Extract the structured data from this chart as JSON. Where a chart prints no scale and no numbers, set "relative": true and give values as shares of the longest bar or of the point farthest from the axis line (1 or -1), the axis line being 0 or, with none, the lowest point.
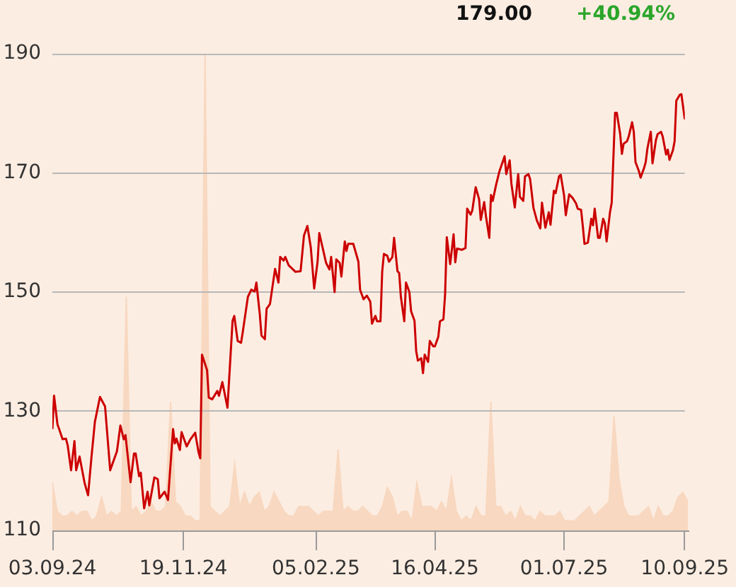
{
  "chart_data": [
    {
      "type": "area",
      "relative": true,
      "categories": [
        null,
        null,
        null,
        null,
        null,
        null,
        null,
        null,
        null,
        null,
        null,
        null,
        null,
        null,
        null,
        null,
        null,
        null,
        null,
        null,
        null,
        null,
        null,
        null,
        null,
        null,
        null,
        null,
        null,
        null,
        null,
        null,
        null,
        null,
        null,
        null,
        null,
        null,
        null,
        null,
        null,
        null,
        null,
        null,
        null,
        null,
        null,
        null,
        null,
        null,
        null,
        null,
        null,
        null,
        null,
        null,
        null,
        null,
        null,
        null,
        null,
        null,
        null,
        null,
        null,
        null,
        null,
        null,
        null,
        null,
        null,
        null,
        null,
        null,
        null,
        null,
        null,
        null,
        null,
        null,
        null,
        null,
        null,
        null,
        null,
        null,
        null,
        null,
        null,
        null,
        null,
        null,
        null,
        null,
        null,
        null,
        null,
        null,
        null,
        null,
        null,
        null,
        null,
        null,
        null,
        null,
        null,
        null,
        null,
        null,
        null,
        null,
        null,
        null,
        null,
        null,
        null,
        null,
        null,
        null,
        null,
        null,
        null,
        null,
        null,
        null,
        null,
        null,
        null,
        null
      ],
      "series": [
        {
          "color": "#f8d8c0",
          "values": [
            0.1,
            0.04,
            0.03,
            0.03,
            0.04,
            0.03,
            0.04,
            0.04,
            0.02,
            0.03,
            0.07,
            0.03,
            0.04,
            0.03,
            0.04,
            0.49,
            0.04,
            0.05,
            0.03,
            0.04,
            0.06,
            0.04,
            0.04,
            0.05,
            0.27,
            0.06,
            0.05,
            0.03,
            0.03,
            0.02,
            0.02,
            1,
            0.05,
            0.04,
            0.03,
            0.04,
            0.05,
            0.14,
            0.05,
            0.08,
            0.05,
            0.07,
            0.08,
            0.04,
            0.05,
            0.08,
            0.06,
            0.04,
            0.03,
            0.03,
            0.05,
            0.05,
            0.05,
            0.04,
            0.03,
            0.04,
            0.04,
            0.04,
            0.17,
            0.04,
            0.05,
            0.04,
            0.04,
            0.05,
            0.04,
            0.03,
            0.03,
            0.05,
            0.09,
            0.07,
            0.03,
            0.04,
            0.04,
            0.02,
            0.1,
            0.05,
            0.05,
            0.05,
            0.04,
            0.06,
            0.04,
            0.11,
            0.04,
            0.02,
            0.03,
            0.02,
            0.05,
            0.03,
            0.03,
            0.27,
            0.05,
            0.05,
            0.03,
            0.04,
            0.02,
            0.05,
            0.03,
            0.03,
            0.02,
            0.04,
            0.03,
            0.03,
            0.03,
            0.04,
            0.02,
            0.02,
            0.02,
            0.03,
            0.04,
            0.05,
            0.03,
            0.04,
            0.05,
            0.06,
            0.24,
            0.11,
            0.05,
            0.03,
            0.03,
            0.03,
            0.04,
            0.05,
            0.02,
            0.05,
            0.03,
            0.03,
            0.04,
            0.07,
            0.08,
            0.06
          ]
        }
      ]
    },
    {
      "type": "line",
      "annotations": [
        "179.00",
        "+40.94%"
      ],
      "xlim": [
        "2024-09-03",
        "2025-09-10"
      ],
      "xticks": [
        {
          "value": "2024-09-03",
          "label": "03.09.24"
        },
        {
          "value": "2024-11-19",
          "label": "19.11.24"
        },
        {
          "value": "2025-02-05",
          "label": "05.02.25"
        },
        {
          "value": "2025-04-16",
          "label": "16.04.25"
        },
        {
          "value": "2025-07-01",
          "label": "01.07.25"
        },
        {
          "value": "2025-09-10",
          "label": "10.09.25"
        }
      ],
      "ylim": [
        110,
        190
      ],
      "yticks": [
        110,
        130,
        150,
        170,
        190
      ],
      "grid": "y",
      "series": [
        {
          "color": "#cc0000",
          "x": [
            "2024-09-03",
            "2024-09-04",
            "2024-09-06",
            "2024-09-07",
            "2024-09-09",
            "2024-09-11",
            "2024-09-12",
            "2024-09-14",
            "2024-09-16",
            "2024-09-17",
            "2024-09-19",
            "2024-09-22",
            "2024-09-24",
            "2024-09-26",
            "2024-09-28",
            "2024-10-01",
            "2024-10-04",
            "2024-10-07",
            "2024-10-11",
            "2024-10-13",
            "2024-10-15",
            "2024-10-16",
            "2024-10-19",
            "2024-10-21",
            "2024-10-22",
            "2024-10-24",
            "2024-10-25",
            "2024-10-27",
            "2024-10-29",
            "2024-10-30",
            "2024-11-02",
            "2024-11-04",
            "2024-11-05",
            "2024-11-08",
            "2024-11-10",
            "2024-11-13",
            "2024-11-14",
            "2024-11-15",
            "2024-11-17",
            "2024-11-18",
            "2024-11-21",
            "2024-11-23",
            "2024-11-26",
            "2024-11-28",
            "2024-11-29",
            "2024-11-30",
            "2024-12-03",
            "2024-12-04",
            "2024-12-06",
            "2024-12-09",
            "2024-12-10",
            "2024-12-12",
            "2024-12-15",
            "2024-12-18",
            "2024-12-19",
            "2024-12-21",
            "2024-12-23",
            "2024-12-24",
            "2024-12-27",
            "2024-12-29",
            "2024-12-31",
            "2025-01-01",
            "2025-01-03",
            "2025-01-04",
            "2025-01-06",
            "2025-01-07",
            "2025-01-09",
            "2025-01-12",
            "2025-01-14",
            "2025-01-15",
            "2025-01-17",
            "2025-01-18",
            "2025-01-20",
            "2025-01-24",
            "2025-01-27",
            "2025-01-29",
            "2025-01-31",
            "2025-02-02",
            "2025-02-04",
            "2025-02-06",
            "2025-02-07",
            "2025-02-11",
            "2025-02-13",
            "2025-02-14",
            "2025-02-16",
            "2025-02-17",
            "2025-02-19",
            "2025-02-20",
            "2025-02-22",
            "2025-02-23",
            "2025-02-24",
            "2025-02-27",
            "2025-03-02",
            "2025-03-03",
            "2025-03-05",
            "2025-03-07",
            "2025-03-09",
            "2025-03-10",
            "2025-03-12",
            "2025-03-13",
            "2025-03-15",
            "2025-03-16",
            "2025-03-17",
            "2025-03-19",
            "2025-03-20",
            "2025-03-22",
            "2025-03-23",
            "2025-03-25",
            "2025-03-26",
            "2025-03-27",
            "2025-03-29",
            "2025-03-30",
            "2025-04-01",
            "2025-04-02",
            "2025-04-04",
            "2025-04-05",
            "2025-04-06",
            "2025-04-08",
            "2025-04-09",
            "2025-04-10",
            "2025-04-12",
            "2025-04-13",
            "2025-04-15",
            "2025-04-16",
            "2025-04-18",
            "2025-04-19",
            "2025-04-21",
            "2025-04-22",
            "2025-04-23",
            "2025-04-25",
            "2025-04-27",
            "2025-04-28",
            "2025-04-29",
            "2025-05-02",
            "2025-05-04",
            "2025-05-05",
            "2025-05-07",
            "2025-05-08",
            "2025-05-10",
            "2025-05-12",
            "2025-05-13",
            "2025-05-15",
            "2025-05-16",
            "2025-05-18",
            "2025-05-19",
            "2025-05-20",
            "2025-05-22",
            "2025-05-24",
            "2025-05-27",
            "2025-05-28",
            "2025-05-30",
            "2025-05-31",
            "2025-06-02",
            "2025-06-04",
            "2025-06-05",
            "2025-06-07",
            "2025-06-08",
            "2025-06-10",
            "2025-06-11",
            "2025-06-13",
            "2025-06-15",
            "2025-06-17",
            "2025-06-18",
            "2025-06-20",
            "2025-06-22",
            "2025-06-23",
            "2025-06-25",
            "2025-06-26",
            "2025-06-28",
            "2025-06-29",
            "2025-07-01",
            "2025-07-02",
            "2025-07-04",
            "2025-07-06",
            "2025-07-08",
            "2025-07-09",
            "2025-07-11",
            "2025-07-12",
            "2025-07-13",
            "2025-07-15",
            "2025-07-17",
            "2025-07-18",
            "2025-07-19",
            "2025-07-21",
            "2025-07-22",
            "2025-07-24",
            "2025-07-25",
            "2025-07-26",
            "2025-07-28",
            "2025-07-29",
            "2025-07-31",
            "2025-08-01",
            "2025-08-03",
            "2025-08-04",
            "2025-08-05",
            "2025-08-07",
            "2025-08-08",
            "2025-08-10",
            "2025-08-11",
            "2025-08-12",
            "2025-08-14",
            "2025-08-15",
            "2025-08-17",
            "2025-08-18",
            "2025-08-19",
            "2025-08-21",
            "2025-08-22",
            "2025-08-24",
            "2025-08-25",
            "2025-08-27",
            "2025-08-28",
            "2025-08-30",
            "2025-08-31",
            "2025-09-01",
            "2025-09-03",
            "2025-09-04",
            "2025-09-05",
            "2025-09-07",
            "2025-09-08",
            "2025-09-10"
          ],
          "values": [
            127.0,
            132.6,
            127.8,
            127.0,
            125.3,
            125.4,
            124.3,
            120.1,
            125.0,
            120.1,
            122.4,
            117.9,
            115.9,
            122.3,
            128.2,
            132.4,
            130.8,
            120.1,
            123.3,
            127.6,
            125.3,
            126.0,
            118.1,
            122.9,
            122.9,
            119.1,
            119.7,
            113.7,
            116.5,
            114.2,
            118.9,
            118.6,
            115.4,
            116.5,
            115.1,
            127.0,
            124.6,
            125.4,
            123.5,
            126.5,
            124.1,
            125.2,
            126.4,
            123.1,
            122.1,
            139.5,
            136.9,
            132.3,
            132.0,
            133.4,
            132.6,
            134.9,
            130.6,
            145.2,
            146.0,
            141.8,
            141.5,
            143.3,
            149.2,
            150.4,
            150.1,
            151.6,
            146.3,
            142.7,
            142.1,
            147.2,
            148.0,
            153.9,
            151.6,
            155.9,
            155.3,
            155.9,
            154.5,
            153.4,
            153.5,
            159.5,
            161.1,
            157.5,
            150.6,
            155.1,
            159.9,
            154.9,
            153.8,
            155.9,
            150.0,
            155.5,
            154.9,
            152.6,
            158.5,
            156.9,
            158.1,
            158.1,
            155.1,
            150.4,
            148.8,
            149.4,
            148.4,
            144.7,
            146.0,
            145.1,
            145.1,
            153.4,
            156.4,
            156.1,
            155.1,
            155.9,
            159.1,
            153.5,
            153.2,
            149.2,
            145.1,
            151.6,
            150.0,
            146.8,
            145.2,
            140.1,
            138.5,
            138.9,
            136.4,
            139.5,
            138.3,
            141.8,
            140.9,
            140.9,
            142.5,
            145.1,
            145.4,
            149.6,
            159.2,
            154.7,
            159.7,
            155.0,
            157.3,
            157.1,
            157.4,
            164.0,
            163.0,
            163.7,
            167.6,
            165.6,
            162.1,
            165.1,
            162.8,
            159.1,
            166.3,
            165.3,
            168.0,
            170.3,
            172.8,
            169.8,
            172.1,
            168.2,
            164.2,
            169.8,
            166.0,
            165.3,
            169.4,
            169.8,
            169.0,
            164.1,
            162.0,
            160.7,
            165.0,
            160.8,
            163.4,
            161.3,
            167.0,
            166.6,
            169.4,
            169.7,
            166.2,
            162.9,
            166.4,
            165.8,
            164.9,
            164.0,
            163.8,
            161.1,
            158.1,
            158.3,
            162.3,
            161.2,
            164.0,
            159.1,
            159.1,
            162.3,
            161.5,
            158.5,
            163.4,
            165.0,
            180.1,
            180.1,
            176.5,
            173.2,
            174.9,
            175.3,
            176.1,
            178.5,
            176.9,
            171.8,
            170.3,
            169.2,
            170.8,
            171.8,
            174.1,
            176.9,
            171.6,
            175.5,
            176.5,
            176.9,
            176.1,
            173.1,
            173.9,
            172.2,
            173.8,
            175.3,
            182.1,
            183.1,
            183.2,
            179.0
          ]
        }
      ]
    }
  ]
}
